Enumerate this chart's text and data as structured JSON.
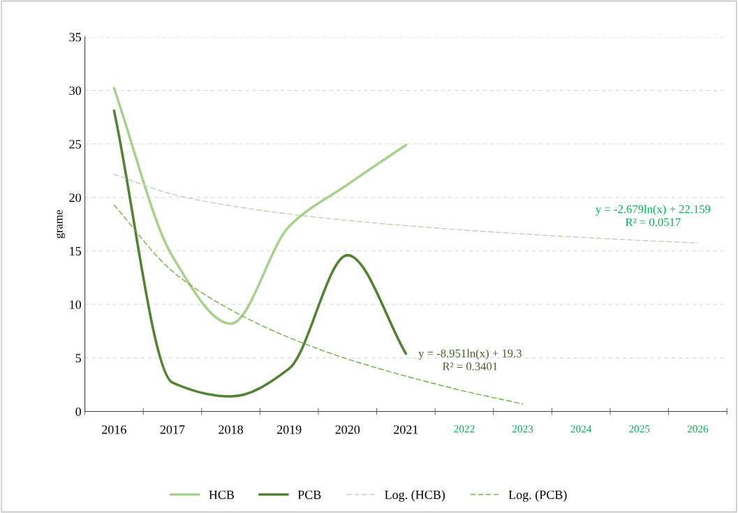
{
  "chart_data": {
    "type": "line",
    "ylabel": "grame",
    "categories": [
      "2016",
      "2017",
      "2018",
      "2019",
      "2020",
      "2021",
      "2022",
      "2023",
      "2024",
      "2025",
      "2026"
    ],
    "series": [
      {
        "name": "HCB",
        "color": "#a9d18e",
        "values": [
          30.2,
          14.5,
          8.2,
          17.3,
          21.2,
          24.9,
          null,
          null,
          null,
          null,
          null
        ]
      },
      {
        "name": "PCB",
        "color": "#548235",
        "values": [
          28.1,
          2.7,
          1.4,
          4.0,
          14.6,
          5.4,
          null,
          null,
          null,
          null,
          null
        ]
      },
      {
        "name": "Log. (HCB)",
        "color": "#c3cfb4",
        "line_style": "dashed",
        "values": [
          22.16,
          20.3,
          19.22,
          18.45,
          17.85,
          17.36,
          16.95,
          16.59,
          16.27,
          15.99,
          15.74
        ]
      },
      {
        "name": "Log. (PCB)",
        "color": "#70ad47",
        "line_style": "dashed",
        "values": [
          19.3,
          13.1,
          9.5,
          6.9,
          4.9,
          3.3,
          1.9,
          0.7,
          null,
          null,
          null
        ]
      }
    ],
    "ylim": [
      0,
      35
    ],
    "yticks": [
      0,
      5,
      10,
      15,
      20,
      25,
      30,
      35
    ],
    "grid": "y",
    "legend": "bottom",
    "marker": "none",
    "line_style": "solid",
    "annotations": [
      "y = -2.679ln(x) + 22.159\nR² = 0.0517",
      "y = -8.951ln(x) + 19.3\nR² = 0.3401"
    ]
  }
}
